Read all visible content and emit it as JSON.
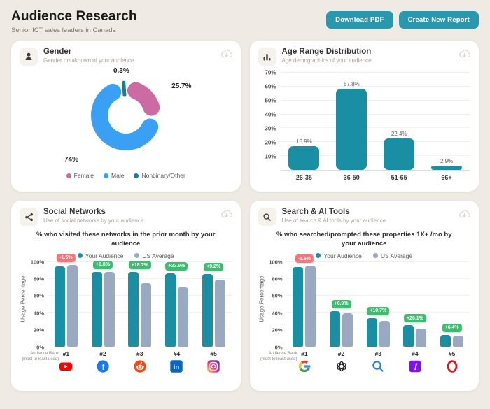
{
  "header": {
    "title": "Audience Research",
    "subtitle": "Senior ICT sales leaders in Canada",
    "download_pdf_label": "Download PDF",
    "create_report_label": "Create New Report"
  },
  "colors": {
    "accent_teal": "#2898ae",
    "bar_teal": "#1a8fa4",
    "bar_gray": "#9aa9c2",
    "donut_pink": "#cc6aa4",
    "donut_blue": "#3aa0f4",
    "donut_teal": "#15808f",
    "badge_green": "#3ebd71",
    "badge_red": "#f2777c"
  },
  "cards": {
    "gender": {
      "title": "Gender",
      "subtitle": "Gender breakdown of your audience"
    },
    "age": {
      "title": "Age Range Distribution",
      "subtitle": "Age demographics of your audience"
    },
    "social": {
      "title": "Social Networks",
      "subtitle": "Use of social networks by your audience"
    },
    "search": {
      "title": "Search & AI Tools",
      "subtitle": "Use of search & AI tools by your audience"
    }
  },
  "chart_data": [
    {
      "id": "gender",
      "type": "pie",
      "labels": [
        "Female",
        "Male",
        "Nonbinary/Other"
      ],
      "values": [
        25.7,
        74,
        0.3
      ],
      "value_labels": [
        "25.7%",
        "74%",
        "0.3%"
      ],
      "colors": [
        "#cc6aa4",
        "#3aa0f4",
        "#15808f"
      ],
      "legend_position": "bottom"
    },
    {
      "id": "age",
      "type": "bar",
      "categories": [
        "26-35",
        "36-50",
        "51-65",
        "66+"
      ],
      "values": [
        16.9,
        57.8,
        22.4,
        2.9
      ],
      "value_labels": [
        "16.9%",
        "57.8%",
        "22.4%",
        "2.9%"
      ],
      "ylim": [
        0,
        70
      ],
      "yticks": [
        10,
        20,
        30,
        40,
        50,
        60,
        70
      ],
      "grid": true
    },
    {
      "id": "social",
      "type": "bar",
      "title": "% who visited these networks in the prior month by your audience",
      "ylabel": "Usage Percentage",
      "ylim": [
        0,
        100
      ],
      "yticks": [
        0,
        20,
        40,
        60,
        80,
        100
      ],
      "legend": [
        "Your Audience",
        "US Average"
      ],
      "legend_position": "top",
      "categories": [
        "#1",
        "#2",
        "#3",
        "#4",
        "#5"
      ],
      "icons": [
        "youtube",
        "facebook",
        "reddit",
        "linkedin",
        "instagram"
      ],
      "series": [
        {
          "name": "Your Audience",
          "values": [
            95,
            88.5,
            88,
            86.5,
            86
          ]
        },
        {
          "name": "US Average",
          "values": [
            96.5,
            87.8,
            74.5,
            70,
            78.7
          ]
        }
      ],
      "series_colors": [
        "#1a8fa4",
        "#9aa9c2"
      ],
      "deltas": [
        "-1.5%",
        "+0.8%",
        "+18.7%",
        "+23.9%",
        "+9.2%"
      ],
      "xaxis_note_line1": "Audience Rank",
      "xaxis_note_line2": "(most to least used)"
    },
    {
      "id": "search",
      "type": "bar",
      "title": "% who searched/prompted these properties 1X+ /mo by your audience",
      "ylabel": "Usage Percentage",
      "ylim": [
        0,
        100
      ],
      "yticks": [
        0,
        20,
        40,
        60,
        80,
        100
      ],
      "legend": [
        "Your Audience",
        "US Average"
      ],
      "legend_position": "top",
      "categories": [
        "#1",
        "#2",
        "#3",
        "#4",
        "#5"
      ],
      "icons": [
        "google",
        "openai",
        "search",
        "yahoo",
        "opera"
      ],
      "series": [
        {
          "name": "Your Audience",
          "values": [
            94,
            42,
            34,
            25,
            14
          ]
        },
        {
          "name": "US Average",
          "values": [
            95.5,
            39.5,
            30.5,
            21,
            13
          ]
        }
      ],
      "series_colors": [
        "#1a8fa4",
        "#9aa9c2"
      ],
      "deltas": [
        "-1.6%",
        "+6.9%",
        "+10.7%",
        "+20.1%",
        "+6.4%"
      ],
      "xaxis_note_line1": "Audience Rank",
      "xaxis_note_line2": "(most to least used)"
    }
  ]
}
